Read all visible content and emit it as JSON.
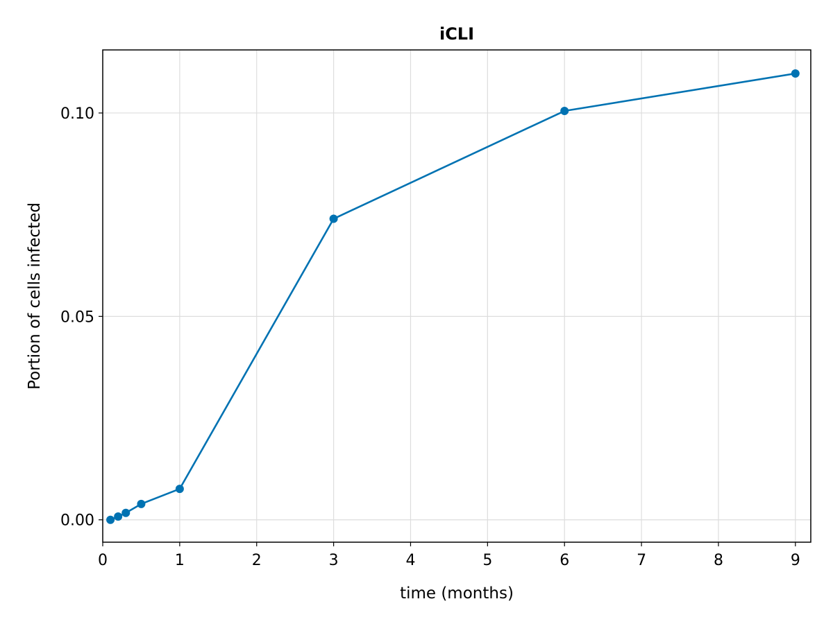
{
  "chart_data": {
    "type": "line",
    "title": "iCLI",
    "xlabel": "time (months)",
    "ylabel": "Portion of cells infected",
    "xlim": [
      0,
      9.2
    ],
    "ylim": [
      -0.0055,
      0.1155
    ],
    "xticks": [
      0,
      1,
      2,
      3,
      4,
      5,
      6,
      7,
      8,
      9
    ],
    "xtick_labels": [
      "0",
      "1",
      "2",
      "3",
      "4",
      "5",
      "6",
      "7",
      "8",
      "9"
    ],
    "yticks": [
      0.0,
      0.05,
      0.1
    ],
    "ytick_labels": [
      "0.00",
      "0.05",
      "0.10"
    ],
    "grid": true,
    "series": [
      {
        "color": "#0072b2",
        "markers": true,
        "x": [
          0.1,
          0.2,
          0.3,
          0.5,
          1,
          3,
          6,
          9
        ],
        "y": [
          0.0,
          0.0008,
          0.0017,
          0.0039,
          0.0076,
          0.074,
          0.1005,
          0.1097
        ]
      }
    ]
  }
}
